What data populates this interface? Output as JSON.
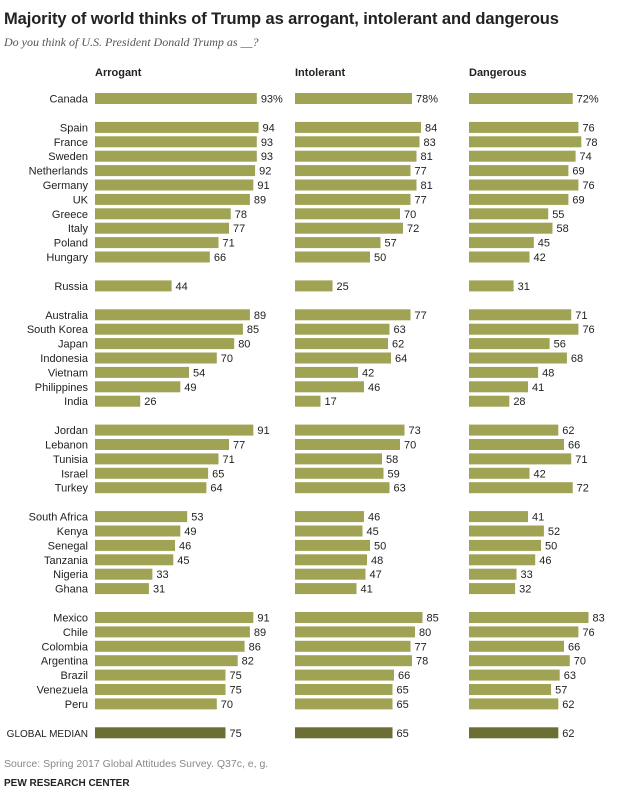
{
  "title": "Majority of world thinks of Trump as arrogant, intolerant and dangerous",
  "subtitle": "Do you think of U.S. President Donald Trump as __?",
  "source": "Source: Spring 2017 Global Attitudes Survey. Q37c, e, g.",
  "credit": "PEW RESEARCH CENTER",
  "colors": {
    "bar": "#a0a354",
    "median_bar": "#6b6f33",
    "text": "#222222"
  },
  "chart_data": {
    "type": "bar",
    "orientation": "horizontal",
    "unit": "%",
    "title": "Majority of world thinks of Trump as arrogant, intolerant and dangerous",
    "series": [
      {
        "name": "Arrogant"
      },
      {
        "name": "Intolerant"
      },
      {
        "name": "Dangerous"
      }
    ],
    "groups": [
      [
        {
          "country": "Canada",
          "values": [
            93,
            78,
            72
          ],
          "show_unit": true
        }
      ],
      [
        {
          "country": "Spain",
          "values": [
            94,
            84,
            76
          ]
        },
        {
          "country": "France",
          "values": [
            93,
            83,
            78
          ]
        },
        {
          "country": "Sweden",
          "values": [
            93,
            81,
            74
          ]
        },
        {
          "country": "Netherlands",
          "values": [
            92,
            77,
            69
          ]
        },
        {
          "country": "Germany",
          "values": [
            91,
            81,
            76
          ]
        },
        {
          "country": "UK",
          "values": [
            89,
            77,
            69
          ]
        },
        {
          "country": "Greece",
          "values": [
            78,
            70,
            55
          ]
        },
        {
          "country": "Italy",
          "values": [
            77,
            72,
            58
          ]
        },
        {
          "country": "Poland",
          "values": [
            71,
            57,
            45
          ]
        },
        {
          "country": "Hungary",
          "values": [
            66,
            50,
            42
          ]
        }
      ],
      [
        {
          "country": "Russia",
          "values": [
            44,
            25,
            31
          ]
        }
      ],
      [
        {
          "country": "Australia",
          "values": [
            89,
            77,
            71
          ]
        },
        {
          "country": "South Korea",
          "values": [
            85,
            63,
            76
          ]
        },
        {
          "country": "Japan",
          "values": [
            80,
            62,
            56
          ]
        },
        {
          "country": "Indonesia",
          "values": [
            70,
            64,
            68
          ]
        },
        {
          "country": "Vietnam",
          "values": [
            54,
            42,
            48
          ]
        },
        {
          "country": "Philippines",
          "values": [
            49,
            46,
            41
          ]
        },
        {
          "country": "India",
          "values": [
            26,
            17,
            28
          ]
        }
      ],
      [
        {
          "country": "Jordan",
          "values": [
            91,
            73,
            62
          ]
        },
        {
          "country": "Lebanon",
          "values": [
            77,
            70,
            66
          ]
        },
        {
          "country": "Tunisia",
          "values": [
            71,
            58,
            71
          ]
        },
        {
          "country": "Israel",
          "values": [
            65,
            59,
            42
          ]
        },
        {
          "country": "Turkey",
          "values": [
            64,
            63,
            72
          ]
        }
      ],
      [
        {
          "country": "South Africa",
          "values": [
            53,
            46,
            41
          ]
        },
        {
          "country": "Kenya",
          "values": [
            49,
            45,
            52
          ]
        },
        {
          "country": "Senegal",
          "values": [
            46,
            50,
            50
          ]
        },
        {
          "country": "Tanzania",
          "values": [
            45,
            48,
            46
          ]
        },
        {
          "country": "Nigeria",
          "values": [
            33,
            47,
            33
          ]
        },
        {
          "country": "Ghana",
          "values": [
            31,
            41,
            32
          ]
        }
      ],
      [
        {
          "country": "Mexico",
          "values": [
            91,
            85,
            83
          ]
        },
        {
          "country": "Chile",
          "values": [
            89,
            80,
            76
          ]
        },
        {
          "country": "Colombia",
          "values": [
            86,
            77,
            66
          ]
        },
        {
          "country": "Argentina",
          "values": [
            82,
            78,
            70
          ]
        },
        {
          "country": "Brazil",
          "values": [
            75,
            66,
            63
          ]
        },
        {
          "country": "Venezuela",
          "values": [
            75,
            65,
            57
          ]
        },
        {
          "country": "Peru",
          "values": [
            70,
            65,
            62
          ]
        }
      ],
      [
        {
          "country": "GLOBAL MEDIAN",
          "values": [
            75,
            65,
            62
          ],
          "median": true
        }
      ]
    ],
    "xlim": [
      0,
      100
    ]
  }
}
